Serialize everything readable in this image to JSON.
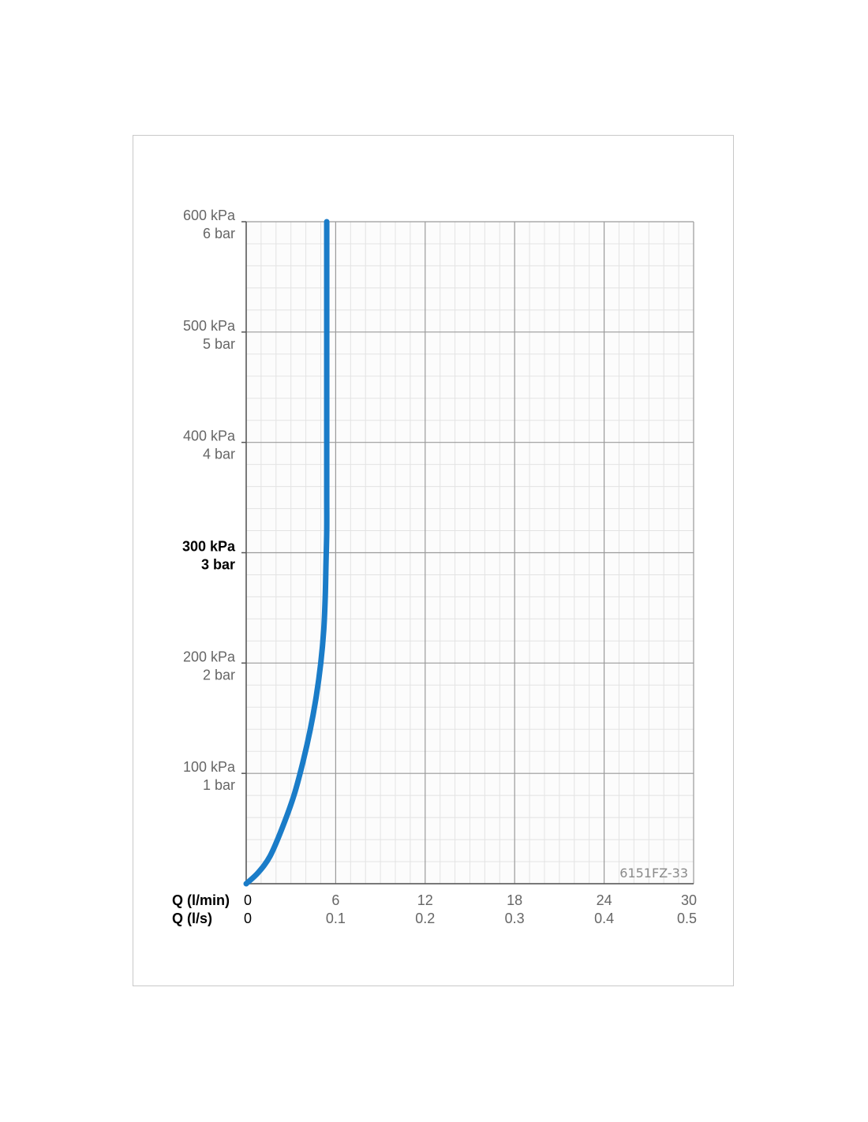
{
  "chart_data": {
    "type": "line",
    "x_label_primary": "Q (l/min)",
    "x_label_secondary": "Q (l/s)",
    "x_ticks_primary": [
      "0",
      "6",
      "12",
      "18",
      "24",
      "30"
    ],
    "x_ticks_secondary": [
      "0",
      "0.1",
      "0.2",
      "0.3",
      "0.4",
      "0.5"
    ],
    "xlim": [
      0,
      30
    ],
    "ylim": [
      0,
      600
    ],
    "y_ticks": [
      {
        "value": 100,
        "kpa": "100 kPa",
        "bar": "1 bar",
        "bold": false
      },
      {
        "value": 200,
        "kpa": "200 kPa",
        "bar": "2 bar",
        "bold": false
      },
      {
        "value": 300,
        "kpa": "300 kPa",
        "bar": "3 bar",
        "bold": true
      },
      {
        "value": 400,
        "kpa": "400 kPa",
        "bar": "4 bar",
        "bold": false
      },
      {
        "value": 500,
        "kpa": "500 kPa",
        "bar": "5 bar",
        "bold": false
      },
      {
        "value": 600,
        "kpa": "600 kPa",
        "bar": "6 bar",
        "bold": false
      }
    ],
    "grid": true,
    "line_color": "#1a7cc8",
    "code_label": "6151FZ-33",
    "series": [
      {
        "x": [
          0,
          0.8,
          1.6,
          2.4,
          3.2,
          3.8,
          4.3,
          4.7,
          5.0,
          5.2,
          5.3,
          5.35,
          5.4,
          5.4,
          5.4,
          5.4,
          5.4
        ],
        "y": [
          0,
          10,
          25,
          50,
          80,
          110,
          140,
          170,
          200,
          230,
          260,
          290,
          320,
          350,
          400,
          500,
          600
        ]
      }
    ]
  }
}
